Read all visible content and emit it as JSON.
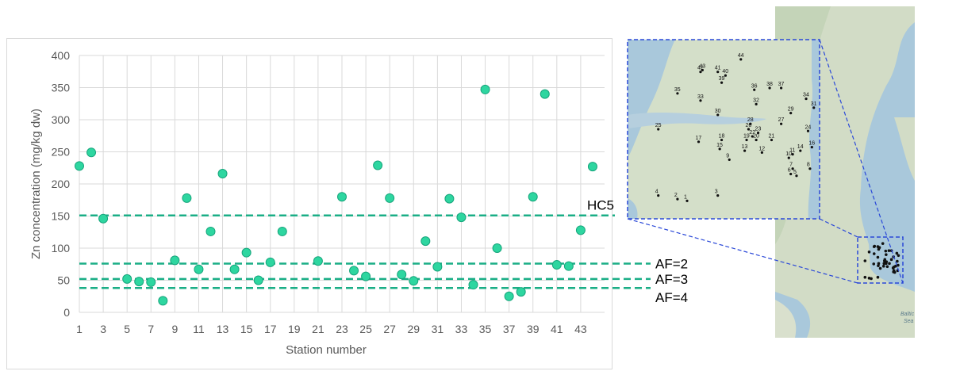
{
  "chart_data": {
    "type": "scatter",
    "title": "",
    "xlabel": "Station number",
    "ylabel": "Zn concentration (mg/kg dw)",
    "ylim": [
      0,
      400
    ],
    "xlim": [
      1,
      45
    ],
    "y_ticks": [
      0,
      50,
      100,
      150,
      200,
      250,
      300,
      350,
      400
    ],
    "x_ticks": [
      1,
      3,
      5,
      7,
      9,
      11,
      13,
      15,
      17,
      19,
      21,
      23,
      25,
      27,
      29,
      31,
      33,
      35,
      37,
      39,
      41,
      43
    ],
    "grid": "vertical and horizontal",
    "marker_color": "#2ed6a0",
    "points": [
      {
        "x": 1,
        "y": 228
      },
      {
        "x": 2,
        "y": 249
      },
      {
        "x": 3,
        "y": 146
      },
      {
        "x": 5,
        "y": 52
      },
      {
        "x": 6,
        "y": 48
      },
      {
        "x": 7,
        "y": 47
      },
      {
        "x": 8,
        "y": 18
      },
      {
        "x": 9,
        "y": 81
      },
      {
        "x": 10,
        "y": 178
      },
      {
        "x": 11,
        "y": 67
      },
      {
        "x": 12,
        "y": 126
      },
      {
        "x": 13,
        "y": 216
      },
      {
        "x": 14,
        "y": 67
      },
      {
        "x": 15,
        "y": 93
      },
      {
        "x": 16,
        "y": 50
      },
      {
        "x": 17,
        "y": 78
      },
      {
        "x": 18,
        "y": 126
      },
      {
        "x": 21,
        "y": 80
      },
      {
        "x": 23,
        "y": 180
      },
      {
        "x": 24,
        "y": 65
      },
      {
        "x": 25,
        "y": 56
      },
      {
        "x": 26,
        "y": 229
      },
      {
        "x": 27,
        "y": 178
      },
      {
        "x": 28,
        "y": 59
      },
      {
        "x": 29,
        "y": 49
      },
      {
        "x": 30,
        "y": 111
      },
      {
        "x": 31,
        "y": 71
      },
      {
        "x": 32,
        "y": 177
      },
      {
        "x": 33,
        "y": 148
      },
      {
        "x": 34,
        "y": 43
      },
      {
        "x": 35,
        "y": 347
      },
      {
        "x": 36,
        "y": 100
      },
      {
        "x": 37,
        "y": 25
      },
      {
        "x": 38,
        "y": 32
      },
      {
        "x": 39,
        "y": 180
      },
      {
        "x": 40,
        "y": 340
      },
      {
        "x": 41,
        "y": 74
      },
      {
        "x": 42,
        "y": 72
      },
      {
        "x": 43,
        "y": 128
      },
      {
        "x": 44,
        "y": 227
      }
    ],
    "reference_lines": [
      {
        "label": "HC5",
        "y": 151
      },
      {
        "label": "AF=2",
        "y": 76
      },
      {
        "label": "AF=3",
        "y": 52
      },
      {
        "label": "AF=4",
        "y": 38
      }
    ],
    "reference_line_color": "#1aae86"
  },
  "map": {
    "inset_labels": [
      "Baltic",
      "Sea"
    ],
    "stations": [
      {
        "id": "1",
        "mx": 0.31,
        "my": 0.9
      },
      {
        "id": "2",
        "mx": 0.26,
        "my": 0.89
      },
      {
        "id": "3",
        "mx": 0.47,
        "my": 0.87
      },
      {
        "id": "4",
        "mx": 0.16,
        "my": 0.87
      },
      {
        "id": "5",
        "mx": 0.88,
        "my": 0.76
      },
      {
        "id": "6",
        "mx": 0.85,
        "my": 0.75
      },
      {
        "id": "7",
        "mx": 0.86,
        "my": 0.72
      },
      {
        "id": "8",
        "mx": 0.95,
        "my": 0.72
      },
      {
        "id": "9",
        "mx": 0.53,
        "my": 0.67
      },
      {
        "id": "10",
        "mx": 0.84,
        "my": 0.66
      },
      {
        "id": "11",
        "mx": 0.86,
        "my": 0.64
      },
      {
        "id": "12",
        "mx": 0.7,
        "my": 0.63
      },
      {
        "id": "13",
        "mx": 0.61,
        "my": 0.62
      },
      {
        "id": "14",
        "mx": 0.9,
        "my": 0.62
      },
      {
        "id": "15",
        "mx": 0.48,
        "my": 0.61
      },
      {
        "id": "16",
        "mx": 0.96,
        "my": 0.6
      },
      {
        "id": "17",
        "mx": 0.37,
        "my": 0.57
      },
      {
        "id": "18",
        "mx": 0.49,
        "my": 0.56
      },
      {
        "id": "19",
        "mx": 0.62,
        "my": 0.56
      },
      {
        "id": "20",
        "mx": 0.67,
        "my": 0.56
      },
      {
        "id": "21",
        "mx": 0.75,
        "my": 0.56
      },
      {
        "id": "22",
        "mx": 0.65,
        "my": 0.54
      },
      {
        "id": "23",
        "mx": 0.68,
        "my": 0.52
      },
      {
        "id": "24",
        "mx": 0.94,
        "my": 0.51
      },
      {
        "id": "25",
        "mx": 0.16,
        "my": 0.5
      },
      {
        "id": "26",
        "mx": 0.63,
        "my": 0.5
      },
      {
        "id": "27",
        "mx": 0.8,
        "my": 0.47
      },
      {
        "id": "28",
        "mx": 0.64,
        "my": 0.47
      },
      {
        "id": "29",
        "mx": 0.85,
        "my": 0.41
      },
      {
        "id": "30",
        "mx": 0.47,
        "my": 0.42
      },
      {
        "id": "31",
        "mx": 0.97,
        "my": 0.38
      },
      {
        "id": "32",
        "mx": 0.67,
        "my": 0.36
      },
      {
        "id": "33",
        "mx": 0.38,
        "my": 0.34
      },
      {
        "id": "34",
        "mx": 0.93,
        "my": 0.33
      },
      {
        "id": "35",
        "mx": 0.26,
        "my": 0.3
      },
      {
        "id": "36",
        "mx": 0.66,
        "my": 0.28
      },
      {
        "id": "37",
        "mx": 0.8,
        "my": 0.27
      },
      {
        "id": "38",
        "mx": 0.74,
        "my": 0.27
      },
      {
        "id": "39",
        "mx": 0.49,
        "my": 0.24
      },
      {
        "id": "40",
        "mx": 0.51,
        "my": 0.2
      },
      {
        "id": "41",
        "mx": 0.47,
        "my": 0.18
      },
      {
        "id": "42",
        "mx": 0.38,
        "my": 0.18
      },
      {
        "id": "43",
        "mx": 0.39,
        "my": 0.17
      },
      {
        "id": "44",
        "mx": 0.59,
        "my": 0.11
      }
    ],
    "water_color": "#9fc3d9",
    "land_color": "#cfdcc3",
    "frame_color": "#2a48d8"
  }
}
